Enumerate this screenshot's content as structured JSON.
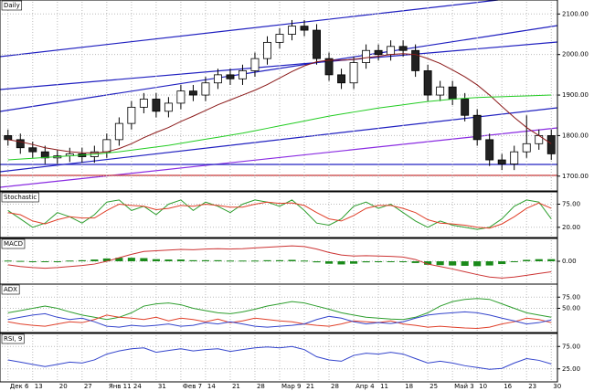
{
  "chart_data": [
    {
      "type": "candlestick",
      "title": "Daily",
      "categories": [
        "Дек 6",
        null,
        "13",
        null,
        "20",
        null,
        "27",
        null,
        "Янв 11",
        null,
        "24",
        null,
        "31",
        null,
        "Фев 7",
        null,
        "14",
        null,
        "21",
        null,
        "28",
        null,
        "Мар 9",
        null,
        "21",
        null,
        "28",
        null,
        "Апр 4",
        null,
        "11",
        null,
        "18",
        null,
        "25",
        null,
        "Май 3",
        null,
        "10",
        null,
        "16",
        null,
        "23",
        null,
        "30"
      ],
      "open": [
        1800,
        1790,
        1770,
        1760,
        1745,
        1750,
        1755,
        1748,
        1760,
        1790,
        1830,
        1870,
        1890,
        1860,
        1880,
        1910,
        1900,
        1930,
        1950,
        1940,
        1960,
        1990,
        2030,
        2050,
        2070,
        2060,
        1990,
        1950,
        1930,
        1980,
        2010,
        2000,
        2020,
        2010,
        1960,
        1900,
        1920,
        1890,
        1850,
        1790,
        1740,
        1730,
        1760,
        1780,
        1800
      ],
      "high": [
        1815,
        1805,
        1785,
        1775,
        1765,
        1770,
        1770,
        1775,
        1805,
        1845,
        1885,
        1905,
        1905,
        1895,
        1925,
        1925,
        1945,
        1965,
        1965,
        1975,
        2005,
        2045,
        2065,
        2085,
        2085,
        2075,
        2005,
        1965,
        1995,
        2025,
        2025,
        2035,
        2035,
        2025,
        1975,
        1935,
        1935,
        1905,
        1865,
        1805,
        1755,
        1775,
        1850,
        1815,
        1815
      ],
      "low": [
        1775,
        1755,
        1745,
        1730,
        1730,
        1735,
        1733,
        1733,
        1745,
        1775,
        1815,
        1855,
        1845,
        1845,
        1865,
        1885,
        1885,
        1915,
        1925,
        1925,
        1945,
        1975,
        2015,
        2035,
        2045,
        1975,
        1935,
        1915,
        1915,
        1965,
        1985,
        1985,
        1995,
        1945,
        1885,
        1885,
        1875,
        1835,
        1775,
        1725,
        1715,
        1715,
        1745,
        1765,
        1740
      ],
      "close": [
        1790,
        1770,
        1760,
        1745,
        1750,
        1755,
        1748,
        1760,
        1790,
        1830,
        1870,
        1890,
        1860,
        1880,
        1910,
        1900,
        1930,
        1950,
        1940,
        1960,
        1990,
        2030,
        2050,
        2070,
        2060,
        1990,
        1950,
        1930,
        1980,
        2010,
        2000,
        2020,
        2010,
        1960,
        1900,
        1920,
        1890,
        1850,
        1790,
        1740,
        1730,
        1760,
        1780,
        1800,
        1755
      ],
      "series": [
        {
          "color": "#8b1a1a",
          "values": [
            1790,
            1785,
            1778,
            1770,
            1765,
            1760,
            1758,
            1757,
            1760,
            1768,
            1780,
            1795,
            1808,
            1820,
            1835,
            1848,
            1862,
            1876,
            1888,
            1900,
            1912,
            1926,
            1942,
            1958,
            1972,
            1982,
            1986,
            1986,
            1988,
            1992,
            1996,
            2000,
            2002,
            2000,
            1990,
            1978,
            1962,
            1945,
            1925,
            1900,
            1872,
            1845,
            1820,
            1800,
            1780
          ]
        },
        {
          "color": "#22cc22",
          "values": [
            1740,
            1742,
            1744,
            1746,
            1748,
            1750,
            1752,
            1754,
            1757,
            1760,
            1764,
            1768,
            1772,
            1776,
            1781,
            1786,
            1791,
            1796,
            1801,
            1806,
            1812,
            1818,
            1824,
            1830,
            1836,
            1842,
            1848,
            1853,
            1858,
            1863,
            1868,
            1872,
            1876,
            1880,
            1884,
            1887,
            1890,
            1892,
            1894,
            1895,
            1896,
            1897,
            1898,
            1899,
            1900
          ]
        }
      ],
      "ylim": [
        1668,
        2130
      ],
      "yticks": [
        {
          "value": 1700,
          "label": "1700.00"
        },
        {
          "value": 1800,
          "label": "1800.00"
        },
        {
          "value": 1900,
          "label": "1900.00"
        },
        {
          "value": 2000,
          "label": "2000.00"
        },
        {
          "value": 2100,
          "label": "2100.00"
        }
      ],
      "grid": true
    },
    {
      "type": "line",
      "title": "Stochastic",
      "series": [
        {
          "color": "#2e9e2e",
          "values": [
            60,
            40,
            20,
            30,
            55,
            45,
            30,
            50,
            80,
            85,
            60,
            70,
            50,
            75,
            85,
            60,
            80,
            70,
            55,
            75,
            85,
            80,
            70,
            85,
            60,
            30,
            25,
            40,
            70,
            80,
            65,
            75,
            55,
            35,
            20,
            35,
            25,
            20,
            15,
            20,
            40,
            70,
            85,
            80,
            40
          ]
        },
        {
          "color": "#e0402a",
          "values": [
            55,
            50,
            35,
            28,
            38,
            45,
            42,
            42,
            60,
            75,
            72,
            70,
            62,
            65,
            72,
            70,
            75,
            72,
            68,
            68,
            75,
            80,
            77,
            78,
            72,
            55,
            40,
            35,
            48,
            65,
            72,
            72,
            65,
            55,
            38,
            30,
            28,
            25,
            20,
            18,
            28,
            45,
            65,
            78,
            65
          ]
        }
      ],
      "ylim": [
        0,
        100
      ],
      "yticks": [
        {
          "value": 20,
          "label": "20.00"
        },
        {
          "value": 75,
          "label": "75.00"
        }
      ],
      "grid": true
    },
    {
      "type": "macd",
      "title": "MACD",
      "histogram": {
        "color": "#1a8a1a",
        "values": [
          2,
          1,
          -1,
          -2,
          0,
          2,
          3,
          5,
          8,
          10,
          10,
          9,
          6,
          5,
          5,
          3,
          3,
          3,
          2,
          2,
          2,
          3,
          3,
          4,
          2,
          -3,
          -7,
          -9,
          -7,
          -3,
          -1,
          0,
          -1,
          -5,
          -10,
          -11,
          -12,
          -13,
          -14,
          -12,
          -8,
          -2,
          4,
          6,
          6
        ]
      },
      "series": [
        {
          "color": "#cc3333",
          "values": [
            -10,
            -15,
            -18,
            -20,
            -18,
            -15,
            -12,
            -8,
            0,
            10,
            20,
            28,
            30,
            32,
            34,
            33,
            35,
            36,
            35,
            36,
            38,
            40,
            42,
            44,
            42,
            35,
            25,
            18,
            15,
            16,
            15,
            14,
            12,
            5,
            -8,
            -15,
            -22,
            -30,
            -38,
            -45,
            -48,
            -45,
            -40,
            -35,
            -30
          ]
        }
      ],
      "ylim": [
        -60,
        60
      ],
      "yticks": [
        {
          "value": 0,
          "label": "0.00"
        }
      ],
      "grid": true
    },
    {
      "type": "line",
      "title": "ADX",
      "series": [
        {
          "color": "#2e9e2e",
          "values": [
            40,
            45,
            50,
            55,
            50,
            42,
            35,
            30,
            25,
            30,
            40,
            55,
            60,
            62,
            58,
            50,
            45,
            40,
            38,
            42,
            48,
            55,
            60,
            65,
            62,
            55,
            48,
            40,
            35,
            30,
            28,
            26,
            25,
            30,
            40,
            55,
            65,
            70,
            72,
            70,
            60,
            50,
            40,
            35,
            30
          ]
        },
        {
          "color": "#e0402a",
          "values": [
            20,
            15,
            12,
            10,
            15,
            20,
            18,
            25,
            35,
            30,
            28,
            25,
            30,
            22,
            28,
            25,
            20,
            26,
            18,
            22,
            28,
            25,
            22,
            20,
            15,
            12,
            10,
            15,
            22,
            20,
            18,
            22,
            15,
            12,
            8,
            10,
            8,
            6,
            5,
            8,
            15,
            20,
            28,
            25,
            18
          ]
        },
        {
          "color": "#3344cc",
          "values": [
            25,
            30,
            35,
            38,
            30,
            25,
            28,
            20,
            10,
            8,
            12,
            10,
            12,
            15,
            10,
            12,
            18,
            15,
            20,
            15,
            10,
            8,
            10,
            12,
            15,
            25,
            32,
            28,
            20,
            15,
            18,
            16,
            20,
            28,
            35,
            38,
            40,
            42,
            40,
            35,
            28,
            22,
            15,
            18,
            24
          ]
        }
      ],
      "ylim": [
        0,
        100
      ],
      "yticks": [
        {
          "value": 50,
          "label": "50.00"
        },
        {
          "value": 75,
          "label": "75.00"
        }
      ],
      "grid": true
    },
    {
      "type": "line",
      "title": "RSI, 9",
      "series": [
        {
          "color": "#3344cc",
          "values": [
            45,
            40,
            35,
            30,
            35,
            40,
            38,
            45,
            58,
            65,
            70,
            72,
            62,
            66,
            70,
            65,
            68,
            70,
            64,
            68,
            72,
            74,
            72,
            75,
            68,
            52,
            45,
            42,
            55,
            60,
            58,
            62,
            58,
            48,
            38,
            42,
            38,
            32,
            28,
            24,
            26,
            38,
            48,
            44,
            36
          ]
        }
      ],
      "ylim": [
        0,
        100
      ],
      "yticks": [
        {
          "value": 25,
          "label": "25.00"
        },
        {
          "value": 75,
          "label": "75.00"
        }
      ],
      "grid": true
    }
  ]
}
